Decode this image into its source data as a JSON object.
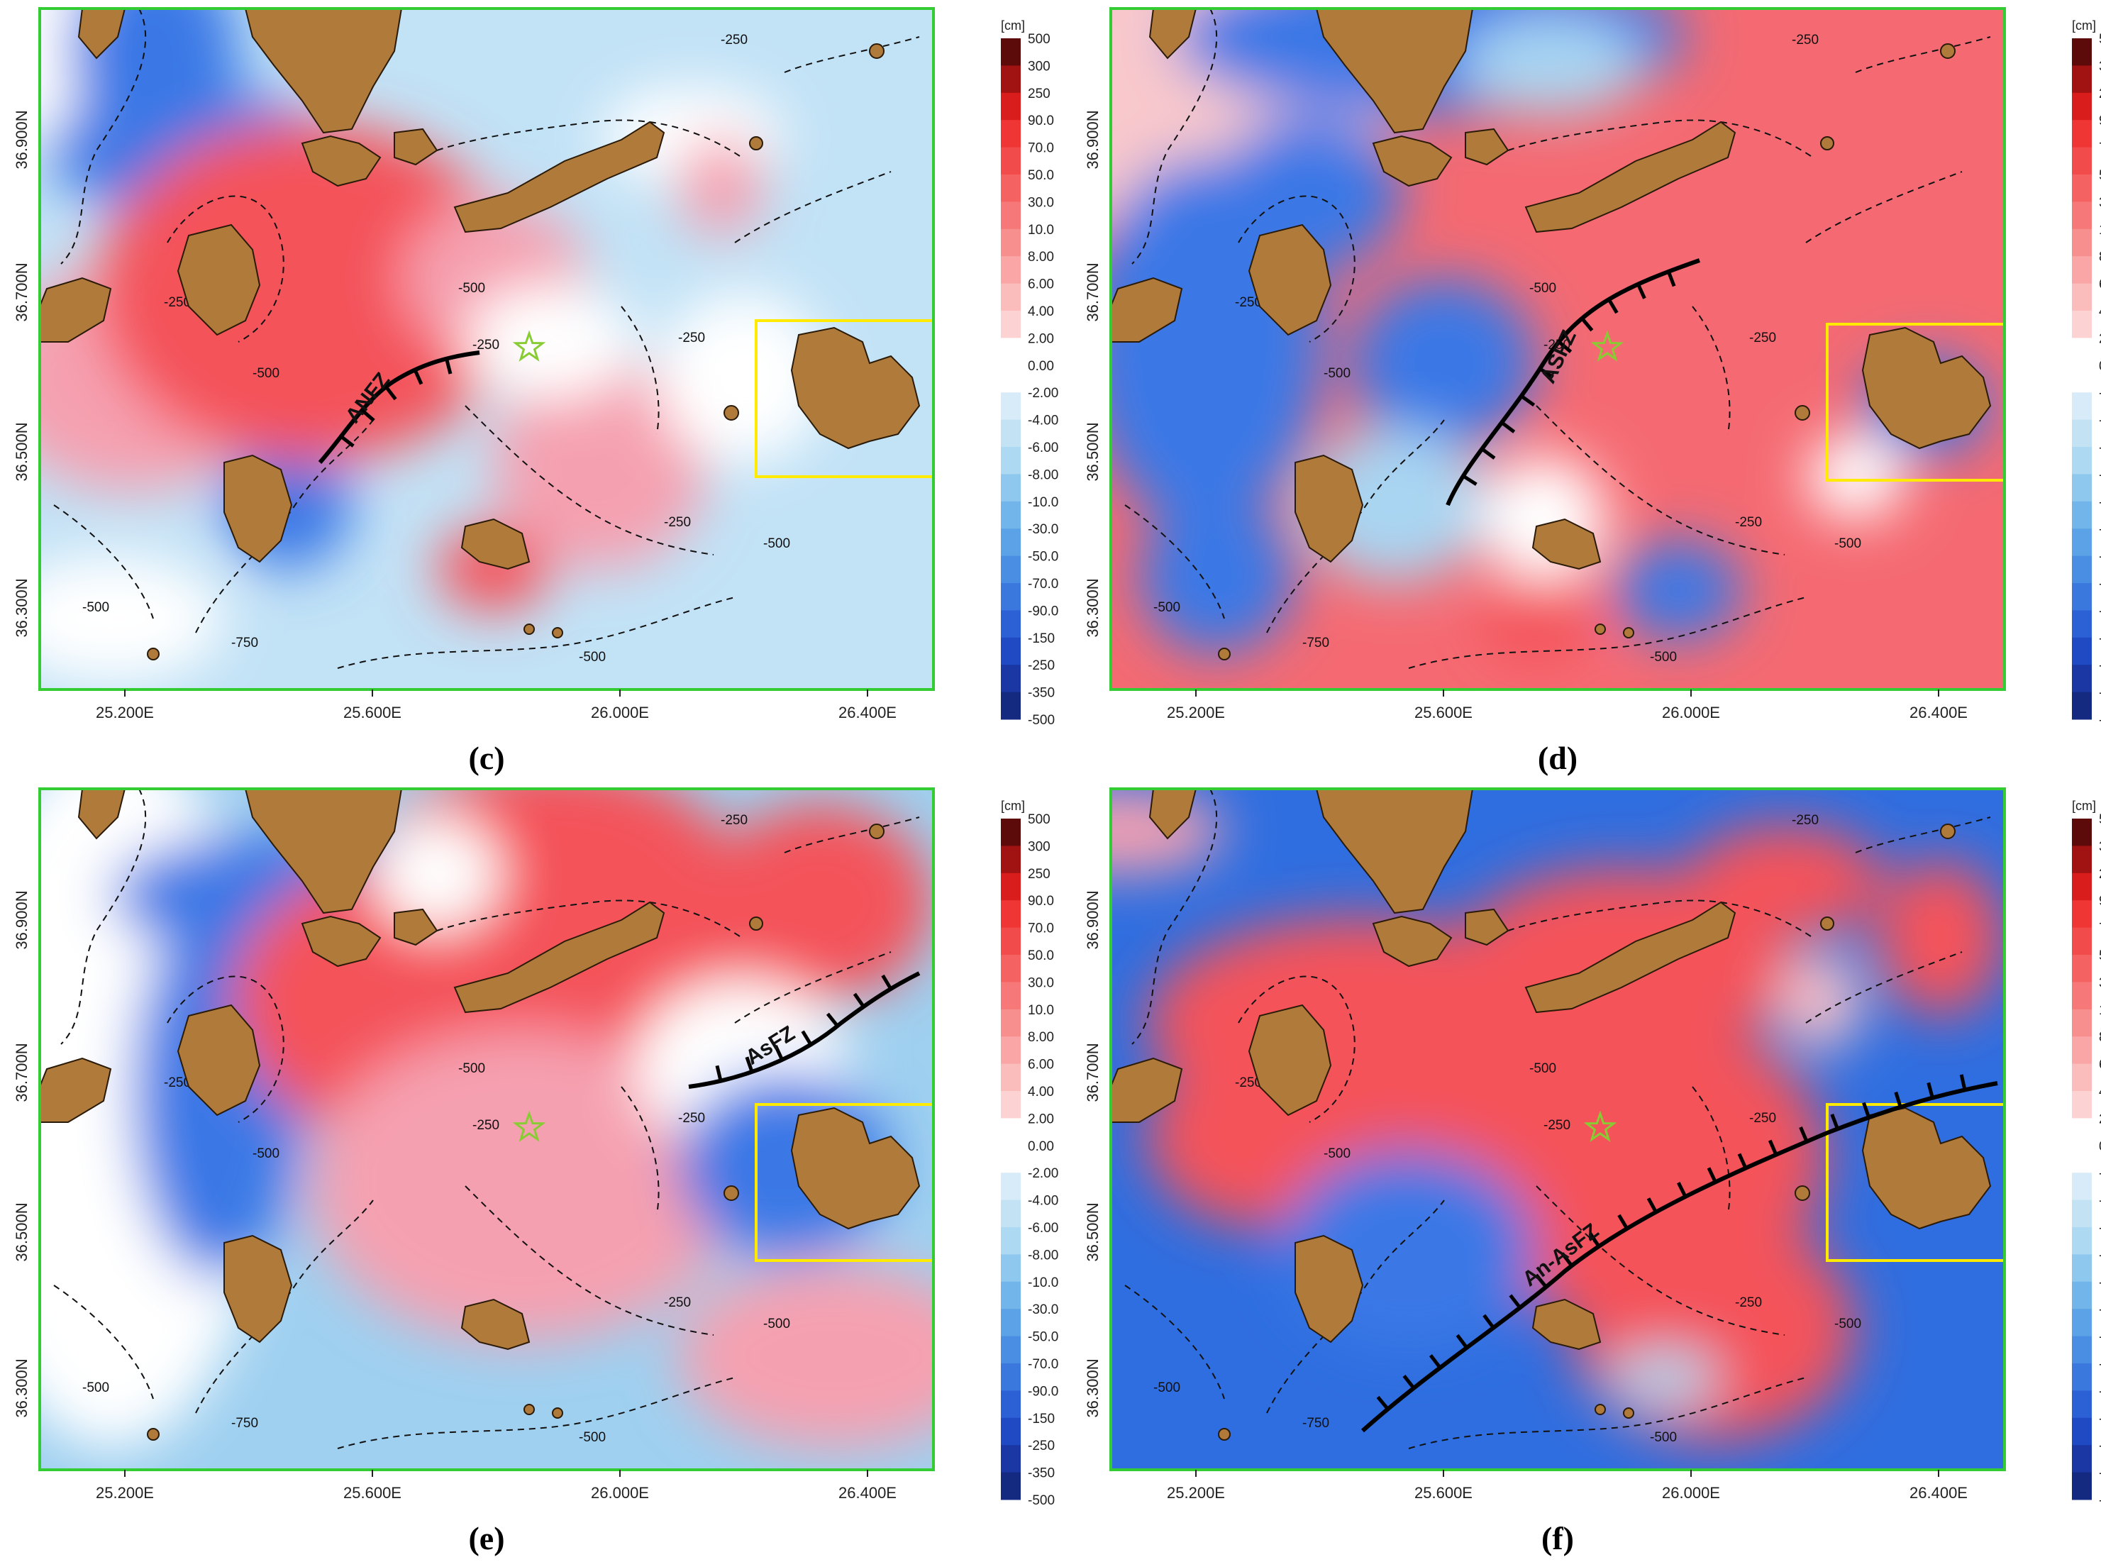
{
  "colorbar": {
    "unit": "[cm]",
    "levels": [
      "500",
      "300",
      "250",
      "90.0",
      "70.0",
      "50.0",
      "30.0",
      "10.0",
      "8.00",
      "6.00",
      "4.00",
      "2.00",
      "0.00",
      "-2.00",
      "-4.00",
      "-6.00",
      "-8.00",
      "-10.0",
      "-30.0",
      "-50.0",
      "-70.0",
      "-90.0",
      "-150",
      "-250",
      "-350",
      "-500"
    ],
    "colors": [
      "#5c0a0a",
      "#a11212",
      "#d91c1c",
      "#f03535",
      "#f24b4b",
      "#f46262",
      "#f67878",
      "#f88f8f",
      "#faa6a6",
      "#fbbcbc",
      "#fdd2d2",
      "#ffffff",
      "#ffffff",
      "#d7ecf8",
      "#c3e3f5",
      "#aed9f2",
      "#8fc8ee",
      "#72b5ea",
      "#5ba2e6",
      "#4a8ee3",
      "#3b78de",
      "#2c61d6",
      "#2049c4",
      "#1a37a3",
      "#142a80"
    ]
  },
  "axes": {
    "x_ticks": [
      "25.200E",
      "25.600E",
      "26.000E",
      "26.400E"
    ],
    "y_ticks": [
      "36.900N",
      "36.700N",
      "36.500N",
      "36.300N"
    ]
  },
  "contours": {
    "l250": "-250",
    "l500": "-500",
    "l750": "-750"
  },
  "panels": [
    {
      "label": "(c)",
      "fault": "ANFZ"
    },
    {
      "label": "(d)",
      "fault": "ASFZ"
    },
    {
      "label": "(e)",
      "fault": "AsFZ"
    },
    {
      "label": "(f)",
      "fault": "An-AsFZ"
    }
  ],
  "colors": {
    "land": "#b07a3a",
    "frame": "#33cc33",
    "box": "#ffea00",
    "epicenter": "#88cc33"
  }
}
